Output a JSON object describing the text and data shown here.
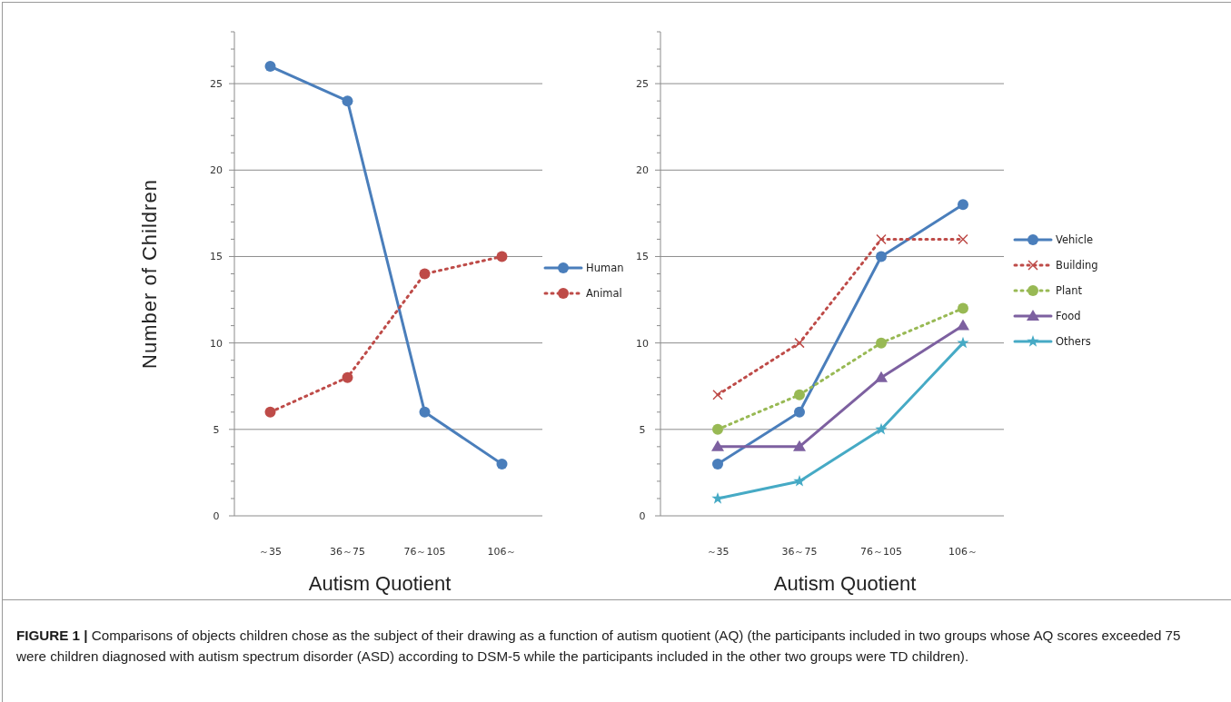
{
  "chart_data": [
    {
      "type": "line",
      "xlabel": "Autism Quotient",
      "ylabel": "Number of Children",
      "categories": [
        "～35",
        "36～75",
        "76～105",
        "106～"
      ],
      "series": [
        {
          "name": "Human",
          "color": "#4a7ebb",
          "values": [
            26,
            24,
            6,
            3
          ],
          "marker": "circle",
          "line_style": "solid"
        },
        {
          "name": "Animal",
          "color": "#be4b48",
          "values": [
            6,
            8,
            14,
            15
          ],
          "marker": "circle",
          "line_style": "dotted"
        }
      ],
      "ylim": [
        0,
        28
      ],
      "yticks": [
        0,
        {
          "value": 1,
          "label": null
        },
        {
          "value": 2,
          "label": null
        },
        {
          "value": 3,
          "label": null
        },
        {
          "value": 4,
          "label": null
        },
        5,
        {
          "value": 6,
          "label": null
        },
        {
          "value": 7,
          "label": null
        },
        {
          "value": 8,
          "label": null
        },
        {
          "value": 9,
          "label": null
        },
        10,
        {
          "value": 11,
          "label": null
        },
        {
          "value": 12,
          "label": null
        },
        {
          "value": 13,
          "label": null
        },
        {
          "value": 14,
          "label": null
        },
        15,
        {
          "value": 16,
          "label": null
        },
        {
          "value": 17,
          "label": null
        },
        {
          "value": 18,
          "label": null
        },
        {
          "value": 19,
          "label": null
        },
        20,
        {
          "value": 21,
          "label": null
        },
        {
          "value": 22,
          "label": null
        },
        {
          "value": 23,
          "label": null
        },
        {
          "value": 24,
          "label": null
        },
        25,
        {
          "value": 26,
          "label": null
        },
        {
          "value": 27,
          "label": null
        },
        {
          "value": 28,
          "label": null
        }
      ],
      "grid": "y",
      "legend": "right",
      "annotations": [
        "**FIGURE 1 |** Comparisons of objects children chose as the subject of their drawing as a function of autism quotient (AQ) (the participants included in two groups whose AQ scores exceeded 75 were children diagnosed with autism spectrum disorder (ASD) according to DSM-5 while the participants included in the other two groups were TD children)."
      ]
    },
    {
      "type": "line",
      "xlabel": "Autism Quotient",
      "categories": [
        "～35",
        "36～75",
        "76～105",
        "106～"
      ],
      "series": [
        {
          "name": "Vehicle",
          "color": "#4a7ebb",
          "values": [
            3,
            6,
            15,
            18
          ],
          "marker": "circle",
          "line_style": "solid"
        },
        {
          "name": "Building",
          "color": "#be4b48",
          "values": [
            7,
            10,
            16,
            16
          ],
          "marker": "cross",
          "line_style": "dotted"
        },
        {
          "name": "Plant",
          "color": "#98b954",
          "values": [
            5,
            7,
            10,
            12
          ],
          "marker": "circle",
          "line_style": "dotted"
        },
        {
          "name": "Food",
          "color": "#7d60a0",
          "values": [
            4,
            4,
            8,
            11
          ],
          "marker": "triangle",
          "line_style": "solid"
        },
        {
          "name": "Others",
          "color": "#46aac5",
          "values": [
            1,
            2,
            5,
            10
          ],
          "marker": "star",
          "line_style": "solid"
        }
      ],
      "ylim": [
        0,
        28
      ],
      "yticks": [
        0,
        {
          "value": 1,
          "label": null
        },
        {
          "value": 2,
          "label": null
        },
        {
          "value": 3,
          "label": null
        },
        {
          "value": 4,
          "label": null
        },
        5,
        {
          "value": 6,
          "label": null
        },
        {
          "value": 7,
          "label": null
        },
        {
          "value": 8,
          "label": null
        },
        {
          "value": 9,
          "label": null
        },
        10,
        {
          "value": 11,
          "label": null
        },
        {
          "value": 12,
          "label": null
        },
        {
          "value": 13,
          "label": null
        },
        {
          "value": 14,
          "label": null
        },
        15,
        {
          "value": 16,
          "label": null
        },
        {
          "value": 17,
          "label": null
        },
        {
          "value": 18,
          "label": null
        },
        {
          "value": 19,
          "label": null
        },
        20,
        {
          "value": 21,
          "label": null
        },
        {
          "value": 22,
          "label": null
        },
        {
          "value": 23,
          "label": null
        },
        {
          "value": 24,
          "label": null
        },
        25,
        {
          "value": 26,
          "label": null
        },
        {
          "value": 27,
          "label": null
        },
        {
          "value": 28,
          "label": null
        }
      ],
      "grid": "y",
      "legend": "right"
    }
  ]
}
